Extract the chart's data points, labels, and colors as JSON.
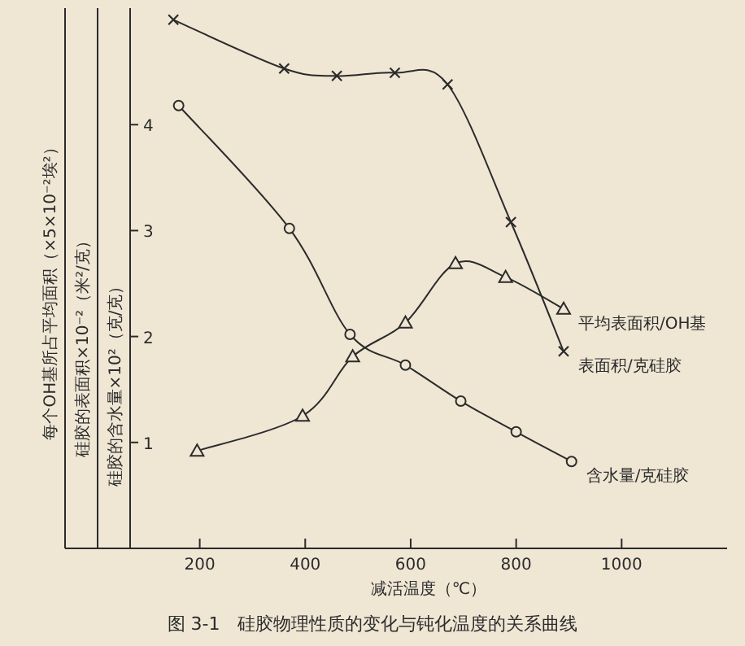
{
  "chart_data": {
    "type": "line",
    "title": "图 3-1　硅胶物理性质的变化与钝化温度的关系曲线",
    "xlabel": "减活温度（℃）",
    "ylabel": "硅胶的含水量×10²（克/克）",
    "y2label": "硅胶的表面积×10⁻²（米²/克）",
    "y3label": "每个OH基所占平均面积（×5×10⁻²埃²）",
    "xlim": [
      68,
      1200
    ],
    "xticks": [
      200,
      400,
      600,
      800,
      1000
    ],
    "ylim": [
      0,
      5.1
    ],
    "yticks": [
      1,
      2,
      3,
      4
    ],
    "grid": false,
    "series": [
      {
        "name": "表面积/克硅胶",
        "color": "#2b2b2b",
        "marker": "cross",
        "x": [
          150,
          360,
          460,
          570,
          670,
          790,
          890
        ],
        "values": [
          4.99,
          4.53,
          4.46,
          4.49,
          4.38,
          3.08,
          1.86
        ]
      },
      {
        "name": "含水量/克硅胶",
        "color": "#2b2b2b",
        "marker": "circle",
        "x": [
          160,
          370,
          485,
          590,
          695,
          800,
          905
        ],
        "values": [
          4.18,
          3.02,
          2.02,
          1.73,
          1.39,
          1.1,
          0.82
        ]
      },
      {
        "name": "平均表面积/OH基",
        "color": "#2b2b2b",
        "marker": "triangle",
        "x": [
          195,
          395,
          490,
          590,
          685,
          780,
          890
        ],
        "values": [
          0.92,
          1.25,
          1.81,
          2.13,
          2.69,
          2.56,
          2.26
        ]
      }
    ]
  }
}
